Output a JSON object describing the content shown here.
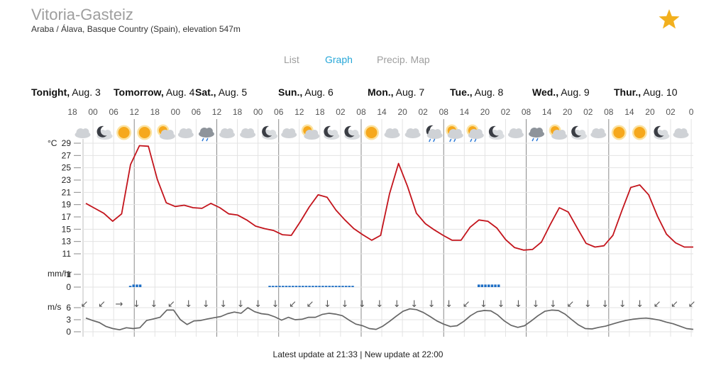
{
  "location": {
    "city": "Vitoria-Gasteiz",
    "region": "Araba / Álava, Basque Country (Spain), elevation 547m"
  },
  "tabs": {
    "list": "List",
    "graph": "Graph",
    "precip_map": "Precip. Map",
    "active": "graph"
  },
  "favorite_icon": "star-icon",
  "colors": {
    "accent": "#27a7d8",
    "temperature_line": "#c3141c",
    "precip_bar": "#1f6fc5",
    "wind_line": "#666666",
    "star": "#f2b01e"
  },
  "days": [
    {
      "bold": "Tonight,",
      "rest": " Aug. 3"
    },
    {
      "bold": "Tomorrow,",
      "rest": " Aug. 4"
    },
    {
      "bold": "Sat.,",
      "rest": " Aug. 5"
    },
    {
      "bold": "Sun.,",
      "rest": " Aug. 6"
    },
    {
      "bold": "Mon.,",
      "rest": " Aug. 7"
    },
    {
      "bold": "Tue.,",
      "rest": " Aug. 8"
    },
    {
      "bold": "Wed.,",
      "rest": " Aug. 9"
    },
    {
      "bold": "Thur.,",
      "rest": " Aug. 10"
    }
  ],
  "hour_labels": [
    "18",
    "00",
    "06",
    "12",
    "18",
    "00",
    "06",
    "12",
    "18",
    "00",
    "06",
    "12",
    "18",
    "02",
    "08",
    "14",
    "20",
    "02",
    "08",
    "14",
    "20",
    "02",
    "08",
    "14",
    "20",
    "02",
    "08",
    "14",
    "20",
    "02",
    "0"
  ],
  "icons": [
    "cloudy-icon",
    "moon-icon",
    "sun-icon",
    "sun-icon",
    "partly-cloudy-sun-icon",
    "cloudy-icon",
    "rain-icon",
    "cloudy-icon",
    "cloudy-icon",
    "moon-icon",
    "cloudy-icon",
    "partly-cloudy-sun-icon",
    "moon-icon",
    "moon-icon",
    "sun-icon",
    "cloudy-icon",
    "cloudy-icon",
    "moon-rain-icon",
    "sun-rain-icon",
    "sun-rain-icon",
    "moon-icon",
    "cloudy-icon",
    "rain-icon",
    "partly-cloudy-sun-icon",
    "moon-icon",
    "cloudy-icon",
    "sun-icon",
    "sun-icon",
    "moon-icon",
    "cloudy-icon"
  ],
  "chart_data": [
    {
      "type": "line",
      "series": [
        {
          "values": [
            19.2,
            18.4,
            17.6,
            16.3,
            17.5,
            25.5,
            28.6,
            28.5,
            23.1,
            19.3,
            18.7,
            18.9,
            18.5,
            18.4,
            19.2,
            18.5,
            17.5,
            17.3,
            16.5,
            15.5,
            15.1,
            14.8,
            14.1,
            14.0,
            16.2,
            18.6,
            20.6,
            20.2,
            18.1,
            16.5,
            15.1,
            14.1,
            13.2,
            14.0,
            20.8,
            25.7,
            22.0,
            17.6,
            15.9,
            14.9,
            14.0,
            13.2,
            13.2,
            15.3,
            16.5,
            16.3,
            15.2,
            13.3,
            12.0,
            11.6,
            11.7,
            12.9,
            15.8,
            18.5,
            17.8,
            15.2,
            12.7,
            12.1,
            12.3,
            14.0,
            18.0,
            21.8,
            22.2,
            20.6,
            17.1,
            14.2,
            12.8,
            12.1,
            12.1
          ]
        }
      ],
      "ylabel": "°C",
      "yticks": [
        11,
        13,
        15,
        17,
        19,
        21,
        23,
        25,
        27,
        29
      ]
    },
    {
      "type": "bar",
      "series": [
        {
          "values": [
            0,
            0,
            0,
            0,
            0,
            0,
            0,
            0,
            0,
            0,
            0,
            0,
            0,
            0.1,
            0.2,
            0.2,
            0.2,
            0,
            0,
            0,
            0,
            0,
            0,
            0,
            0,
            0,
            0,
            0,
            0,
            0,
            0,
            0,
            0,
            0,
            0,
            0,
            0,
            0,
            0,
            0,
            0,
            0,
            0,
            0,
            0,
            0,
            0,
            0,
            0,
            0,
            0,
            0,
            0,
            0,
            0,
            0.1,
            0.1,
            0.1,
            0.1,
            0.1,
            0.1,
            0.1,
            0.1,
            0.1,
            0.1,
            0.1,
            0.1,
            0.1,
            0.1,
            0.1,
            0.1,
            0.1,
            0.1,
            0.1,
            0.1,
            0.1,
            0.1,
            0.1,
            0.1,
            0.1,
            0.1,
            0,
            0,
            0,
            0,
            0,
            0,
            0,
            0,
            0,
            0,
            0,
            0,
            0,
            0,
            0,
            0,
            0,
            0,
            0,
            0,
            0,
            0,
            0,
            0,
            0,
            0,
            0,
            0,
            0,
            0,
            0,
            0,
            0,
            0,
            0,
            0,
            0,
            0.2,
            0.2,
            0.2,
            0.2,
            0.2,
            0.2,
            0.2,
            0,
            0,
            0,
            0,
            0,
            0,
            0,
            0,
            0,
            0,
            0,
            0,
            0,
            0,
            0,
            0,
            0,
            0,
            0,
            0,
            0,
            0,
            0,
            0,
            0,
            0,
            0,
            0,
            0,
            0,
            0,
            0,
            0,
            0,
            0,
            0,
            0,
            0,
            0,
            0,
            0,
            0,
            0,
            0,
            0,
            0,
            0,
            0,
            0,
            0,
            0,
            0,
            0,
            0,
            0,
            0,
            0,
            0
          ]
        }
      ],
      "ylabel": "mm/hr",
      "yticks": [
        0,
        1
      ]
    },
    {
      "type": "line",
      "series": [
        {
          "values": [
            3.4,
            2.8,
            2.3,
            1.3,
            0.8,
            0.5,
            1.0,
            0.8,
            1.0,
            2.8,
            3.2,
            3.6,
            5.4,
            5.4,
            3.0,
            1.8,
            2.7,
            2.8,
            3.2,
            3.5,
            3.8,
            4.5,
            4.9,
            4.6,
            6.0,
            5.0,
            4.5,
            4.3,
            3.7,
            2.9,
            3.6,
            3.0,
            3.1,
            3.6,
            3.6,
            4.3,
            4.6,
            4.4,
            4.0,
            2.9,
            1.9,
            1.5,
            0.8,
            0.6,
            1.4,
            2.6,
            3.9,
            5.1,
            5.7,
            5.5,
            4.8,
            3.8,
            2.7,
            1.9,
            1.3,
            1.5,
            2.6,
            4.0,
            5.0,
            5.3,
            5.2,
            4.2,
            2.7,
            1.6,
            1.1,
            1.5,
            2.7,
            4.0,
            5.1,
            5.4,
            5.3,
            4.4,
            3.0,
            1.7,
            0.8,
            0.7,
            1.1,
            1.4,
            1.9,
            2.4,
            2.8,
            3.1,
            3.3,
            3.4,
            3.2,
            2.9,
            2.4,
            2.0,
            1.4,
            0.8,
            0.6
          ]
        }
      ],
      "ylabel": "m/s",
      "yticks": [
        0,
        3,
        6
      ],
      "direction_arrows": [
        "↙",
        "↙",
        "→",
        "↓",
        "↓",
        "↙",
        "↓",
        "↓",
        "↓",
        "↓",
        "↓",
        "↓",
        "↙",
        "↙",
        "↓",
        "↓",
        "↓",
        "↓",
        "↓",
        "↓",
        "↓",
        "↓",
        "↙",
        "↓",
        "↓",
        "↓",
        "↓",
        "↓",
        "↙",
        "↓",
        "↓",
        "↓",
        "↓",
        "↙",
        "↙",
        "↙"
      ]
    }
  ],
  "footer": "Latest update at 21:33 | New update at 22:00"
}
